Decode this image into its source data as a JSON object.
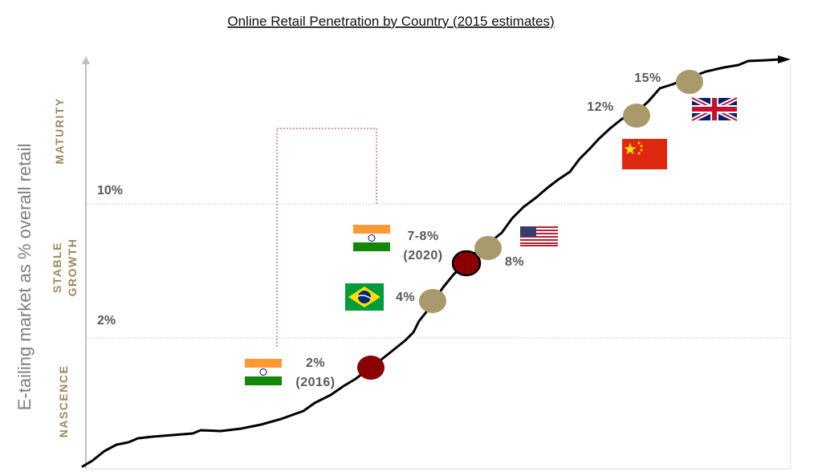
{
  "chart_data": {
    "type": "line",
    "title": "Online Retail Penetration by Country (2015 estimates)",
    "ylabel": "E-tailing market as % overall retail",
    "xlabel": "",
    "grid": false,
    "phases": [
      {
        "id": "nascence",
        "label": "NASCENCE"
      },
      {
        "id": "stable",
        "label": "STABLE GROWTH",
        "lines": [
          "STABLE",
          "GROWTH"
        ]
      },
      {
        "id": "maturity",
        "label": "MATURITY"
      }
    ],
    "thresholds": [
      {
        "id": "t2",
        "label": "2%"
      },
      {
        "id": "t10",
        "label": "10%"
      }
    ],
    "points": [
      {
        "id": "india-2016",
        "country": "India",
        "label": "2%",
        "sublabel": "(2016)",
        "value": 2,
        "color": "#8b0000",
        "flag": "india-flag",
        "projected": false
      },
      {
        "id": "brazil",
        "country": "Brazil",
        "label": "4%",
        "value": 4,
        "color": "#a99a6b",
        "flag": "brazil-flag"
      },
      {
        "id": "india-2020",
        "country": "India",
        "label": "7-8%",
        "sublabel": "(2020)",
        "value": 7.5,
        "color": "#8b0000",
        "flag": "india-flag",
        "projected": true
      },
      {
        "id": "usa",
        "country": "USA",
        "label": "8%",
        "value": 8,
        "color": "#a99a6b",
        "flag": "usa-flag"
      },
      {
        "id": "china",
        "country": "China",
        "label": "12%",
        "value": 12,
        "color": "#a99a6b",
        "flag": "china-flag"
      },
      {
        "id": "uk",
        "country": "UK",
        "label": "15%",
        "value": 15,
        "color": "#a99a6b",
        "flag": "uk-flag"
      }
    ]
  },
  "colors": {
    "phase_text": "#9c8a5c",
    "mature_dot": "#a99a6b",
    "india_dot": "#8b0000",
    "curve": "#000000",
    "connector": "#c0392b"
  }
}
